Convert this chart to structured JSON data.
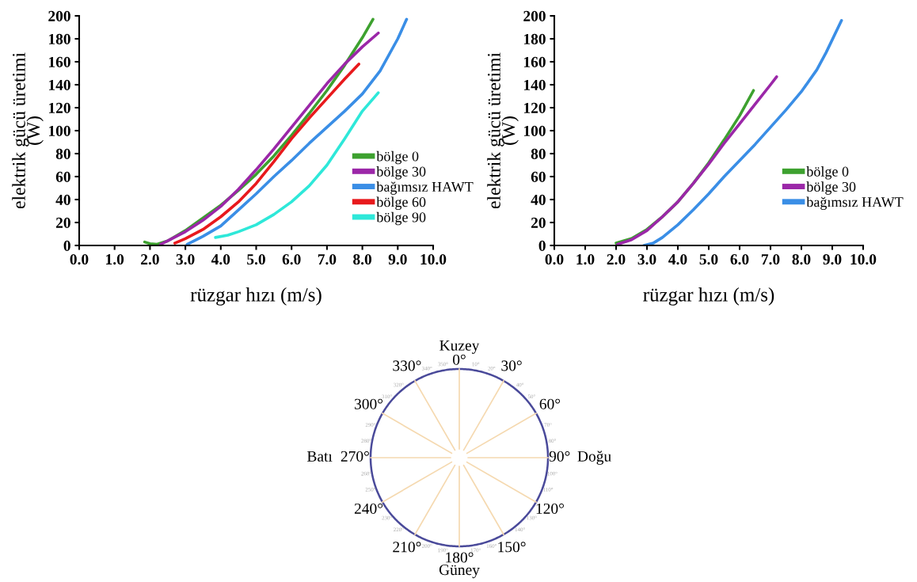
{
  "chart_data": [
    {
      "type": "line",
      "xlabel": "rüzgar hızı (m/s)",
      "ylabel": "elektrik gücü üretimi\n(W)",
      "xlim": [
        0,
        10
      ],
      "ylim": [
        0,
        200
      ],
      "xticks": [
        {
          "value": 0,
          "label": "0.0"
        },
        {
          "value": 1,
          "label": "1.0"
        },
        {
          "value": 2,
          "label": "2.0"
        },
        {
          "value": 3,
          "label": "3.0"
        },
        {
          "value": 4,
          "label": "4.0"
        },
        {
          "value": 5,
          "label": "5.0"
        },
        {
          "value": 6,
          "label": "6.0"
        },
        {
          "value": 7,
          "label": "7.0"
        },
        {
          "value": 8,
          "label": "8.0"
        },
        {
          "value": 9,
          "label": "9.0"
        },
        {
          "value": 10,
          "label": "10.0"
        }
      ],
      "yticks": [
        0,
        20,
        40,
        60,
        80,
        100,
        120,
        140,
        160,
        180,
        200
      ],
      "legend": "right",
      "grid": false,
      "marker": "none",
      "line_style": "solid",
      "series": [
        {
          "name": "bölge 0",
          "color": "#3da12f",
          "x": [
            1.85,
            2.0,
            2.2,
            2.5,
            3,
            3.5,
            4,
            4.5,
            5,
            5.5,
            6,
            6.5,
            7,
            7.5,
            8,
            8.3
          ],
          "values": [
            3,
            1.5,
            1,
            4,
            13,
            24,
            35,
            48,
            62,
            78,
            96,
            115,
            135,
            157,
            181,
            197
          ]
        },
        {
          "name": "bölge 30",
          "color": "#9b27a8",
          "x": [
            2.3,
            2.5,
            3,
            3.5,
            4,
            4.5,
            5,
            5.5,
            6,
            6.5,
            7,
            7.5,
            8,
            8.45
          ],
          "values": [
            1,
            4,
            12,
            22,
            34,
            49,
            66,
            84,
            103,
            122,
            141,
            158,
            173,
            185
          ]
        },
        {
          "name": "bağımsız HAWT",
          "color": "#3a8ee6",
          "x": [
            3.05,
            3.5,
            4,
            4.5,
            5,
            5.5,
            6,
            6.5,
            7,
            7.5,
            8,
            8.5,
            9,
            9.25
          ],
          "values": [
            1,
            8,
            17,
            31,
            45,
            60,
            74,
            89,
            103,
            117,
            132,
            152,
            180,
            197
          ]
        },
        {
          "name": "bölge 60",
          "color": "#e8191c",
          "x": [
            2.7,
            3,
            3.5,
            4,
            4.5,
            5,
            5.5,
            6,
            6.5,
            7,
            7.5,
            7.9
          ],
          "values": [
            2,
            6,
            14,
            25,
            38,
            54,
            73,
            93,
            111,
            128,
            145,
            158
          ]
        },
        {
          "name": "bölge 90",
          "color": "#2ee8d9",
          "x": [
            3.85,
            4.2,
            4.5,
            5,
            5.5,
            6,
            6.5,
            7,
            7.5,
            8,
            8.45
          ],
          "values": [
            7,
            9,
            12,
            18,
            27,
            38,
            52,
            70,
            93,
            117,
            133
          ]
        }
      ]
    },
    {
      "type": "line",
      "xlabel": "rüzgar hızı (m/s)",
      "ylabel": "elektrik gücü üretimi\n(W)",
      "xlim": [
        0,
        10
      ],
      "ylim": [
        0,
        200
      ],
      "xticks": [
        {
          "value": 0,
          "label": "0.0"
        },
        {
          "value": 1,
          "label": "1.0"
        },
        {
          "value": 2,
          "label": "2.0"
        },
        {
          "value": 3,
          "label": "3.0"
        },
        {
          "value": 4,
          "label": "4.0"
        },
        {
          "value": 5,
          "label": "5.0"
        },
        {
          "value": 6,
          "label": "6.0"
        },
        {
          "value": 7,
          "label": "7.0"
        },
        {
          "value": 8,
          "label": "8.0"
        },
        {
          "value": 9,
          "label": "9.0"
        },
        {
          "value": 10,
          "label": "10.0"
        }
      ],
      "yticks": [
        0,
        20,
        40,
        60,
        80,
        100,
        120,
        140,
        160,
        180,
        200
      ],
      "legend": "right",
      "grid": false,
      "marker": "none",
      "line_style": "solid",
      "series": [
        {
          "name": "bölge 0",
          "color": "#3da12f",
          "x": [
            2.0,
            2.5,
            3,
            3.5,
            4,
            4.5,
            5,
            5.5,
            6,
            6.45
          ],
          "values": [
            2,
            6,
            14,
            25,
            38,
            54,
            72,
            92,
            113,
            135
          ]
        },
        {
          "name": "bölge 30",
          "color": "#9b27a8",
          "x": [
            2.05,
            2.5,
            3,
            3.5,
            4,
            4.5,
            5,
            5.5,
            6,
            6.5,
            7,
            7.2
          ],
          "values": [
            1,
            5,
            13,
            25,
            38,
            54,
            71,
            89,
            106,
            123,
            140,
            147
          ]
        },
        {
          "name": "bağımsız HAWT",
          "color": "#3a8ee6",
          "x": [
            2.9,
            3.2,
            3.5,
            4,
            4.5,
            5,
            5.5,
            6,
            6.5,
            7,
            7.5,
            8,
            8.5,
            8.8,
            9.3
          ],
          "values": [
            0,
            2,
            7,
            18,
            31,
            45,
            60,
            74,
            88,
            103,
            118,
            134,
            153,
            168,
            196
          ]
        }
      ]
    },
    {
      "type": "other",
      "annotations": [
        "Kuzey",
        "Doğu",
        "Güney",
        "Batı",
        "0°",
        "30°",
        "60°",
        "90°",
        "120°",
        "150°",
        "180°",
        "210°",
        "240°",
        "270°",
        "300°",
        "330°",
        "10°",
        "20°",
        "40°",
        "50°",
        "70°",
        "80°",
        "100°",
        "110°",
        "130°",
        "140°",
        "160°",
        "170°",
        "190°",
        "200°",
        "220°",
        "230°",
        "250°",
        "260°",
        "280°",
        "290°",
        "310°",
        "320°",
        "340°",
        "350°"
      ]
    }
  ]
}
